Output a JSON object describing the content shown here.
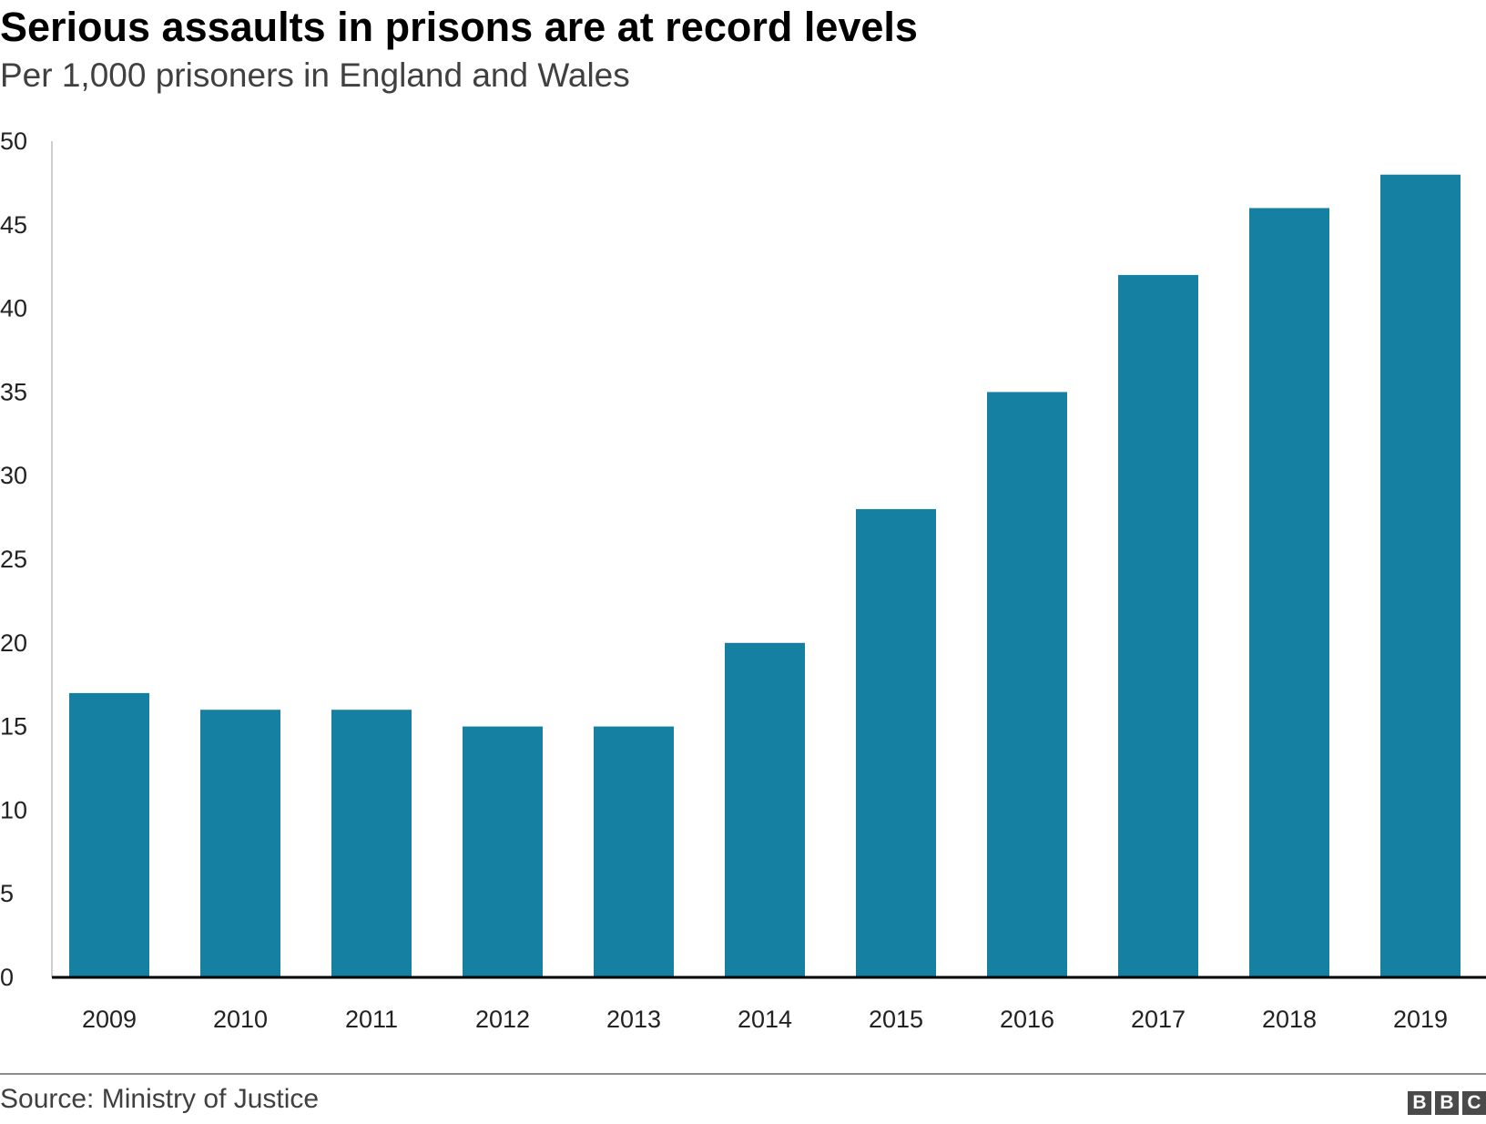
{
  "header": {
    "title": "Serious assaults in prisons are at record levels",
    "subtitle": "Per 1,000 prisoners in England and Wales"
  },
  "footer": {
    "source": "Source: Ministry of Justice",
    "logo_letters": [
      "B",
      "B",
      "C"
    ]
  },
  "colors": {
    "bar": "#1580a2",
    "axis": "#000000",
    "logo_bg": "#4a4a4a"
  },
  "chart_data": {
    "type": "bar",
    "title": "Serious assaults in prisons are at record levels",
    "subtitle": "Per 1,000 prisoners in England and Wales",
    "xlabel": "",
    "ylabel": "",
    "categories": [
      "2009",
      "2010",
      "2011",
      "2012",
      "2013",
      "2014",
      "2015",
      "2016",
      "2017",
      "2018",
      "2019"
    ],
    "values": [
      17,
      16,
      16,
      15,
      15,
      20,
      28,
      35,
      42,
      46,
      48
    ],
    "ylim": [
      0,
      50
    ],
    "yticks": [
      0,
      5,
      10,
      15,
      20,
      25,
      30,
      35,
      40,
      45,
      50
    ],
    "grid": false,
    "legend": "none"
  }
}
